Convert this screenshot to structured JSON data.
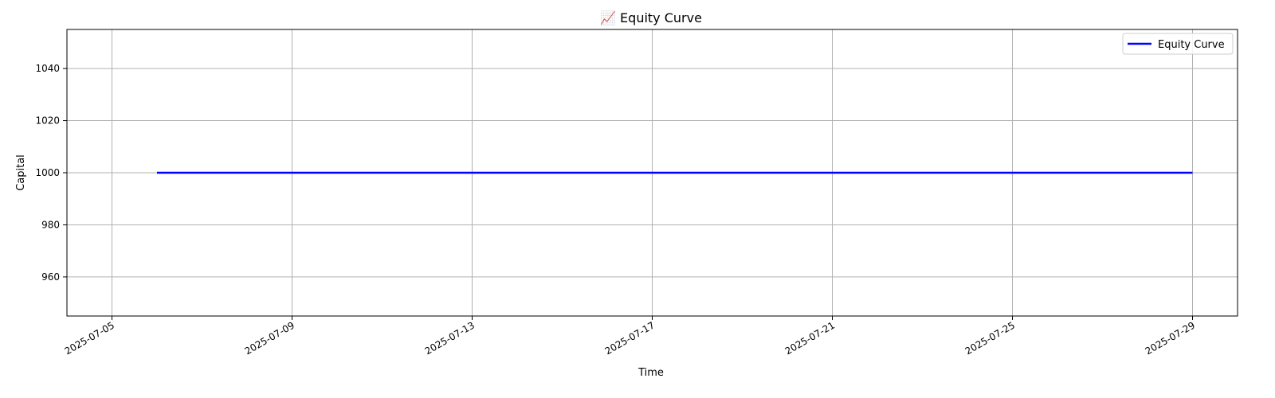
{
  "chart_data": {
    "type": "line",
    "title": "📈 Equity Curve",
    "xlabel": "Time",
    "ylabel": "Capital",
    "x_tick_labels": [
      "2025-07-05",
      "2025-07-09",
      "2025-07-13",
      "2025-07-17",
      "2025-07-21",
      "2025-07-25",
      "2025-07-29"
    ],
    "y_tick_labels": [
      "960",
      "980",
      "1000",
      "1020",
      "1040"
    ],
    "y_ticks": [
      960,
      980,
      1000,
      1020,
      1040
    ],
    "xlim": [
      "2025-07-04",
      "2025-07-30"
    ],
    "ylim": [
      945,
      1055
    ],
    "grid": true,
    "legend_position": "top-right",
    "series": [
      {
        "name": "Equity Curve",
        "color": "#0000ff",
        "x": [
          "2025-07-06",
          "2025-07-29"
        ],
        "y": [
          1000,
          1000
        ]
      }
    ]
  }
}
